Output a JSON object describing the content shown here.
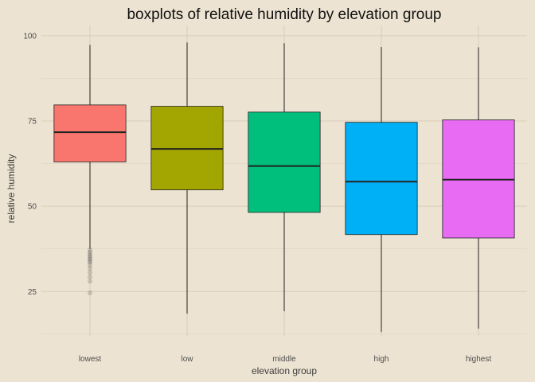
{
  "chart_data": {
    "type": "boxplot",
    "title": "boxplots of relative humidity by elevation group",
    "xlabel": "elevation group",
    "ylabel": "relative humidity",
    "ylim": [
      12,
      103
    ],
    "yticks": [
      25,
      50,
      75,
      100
    ],
    "grid": true,
    "legend": "none",
    "categories": [
      "lowest",
      "low",
      "middle",
      "high",
      "highest"
    ],
    "boxes": [
      {
        "category": "lowest",
        "min": 37.5,
        "q1": 63.0,
        "median": 71.7,
        "q3": 79.7,
        "max": 97.3,
        "color": "#f8766d",
        "outliers": [
          24.6,
          28.0,
          29.3,
          30.6,
          31.8,
          32.8,
          33.6,
          34.0,
          34.5,
          35.0,
          35.5,
          36.0,
          36.6,
          37.2
        ]
      },
      {
        "category": "low",
        "min": 18.5,
        "q1": 54.8,
        "median": 66.8,
        "q3": 79.3,
        "max": 98.0,
        "color": "#a3a500",
        "outliers": []
      },
      {
        "category": "middle",
        "min": 19.2,
        "q1": 48.2,
        "median": 61.8,
        "q3": 77.6,
        "max": 97.8,
        "color": "#00bf7d",
        "outliers": []
      },
      {
        "category": "high",
        "min": 13.2,
        "q1": 41.7,
        "median": 57.2,
        "q3": 74.6,
        "max": 96.7,
        "color": "#00b0f6",
        "outliers": []
      },
      {
        "category": "highest",
        "min": 14.1,
        "q1": 40.7,
        "median": 57.8,
        "q3": 75.3,
        "max": 96.6,
        "color": "#e76bf3",
        "outliers": []
      }
    ]
  }
}
